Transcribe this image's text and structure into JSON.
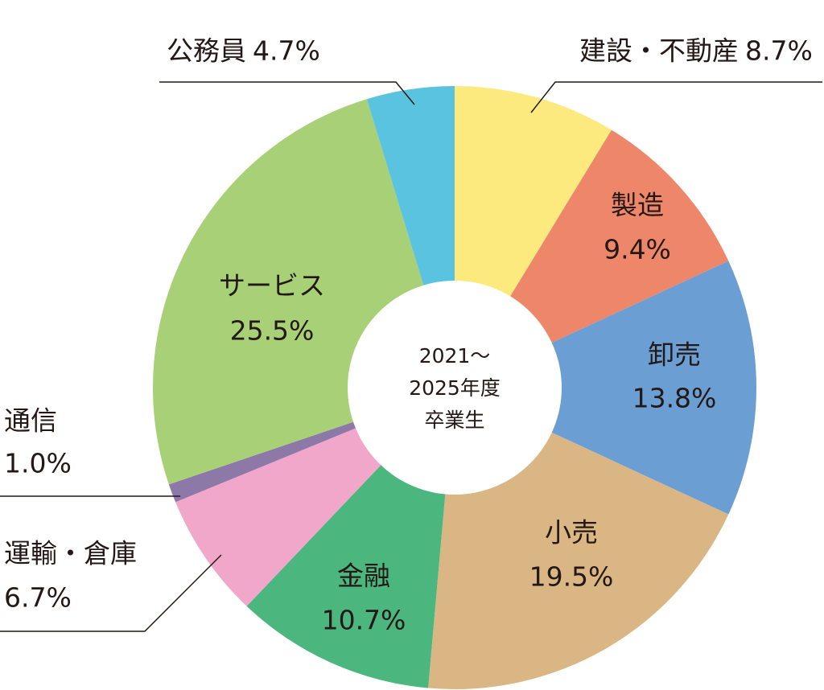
{
  "chart_data": {
    "type": "pie",
    "donut": true,
    "center_text": [
      "2021〜",
      "2025年度",
      "卒業生"
    ],
    "categories": [
      "建設・不動産",
      "製造",
      "卸売",
      "小売",
      "金融",
      "運輸・倉庫",
      "通信",
      "サービス",
      "公務員"
    ],
    "values": [
      8.7,
      9.4,
      13.8,
      19.5,
      10.7,
      6.7,
      1.0,
      25.5,
      4.7
    ],
    "value_labels": [
      "8.7%",
      "9.4%",
      "13.8%",
      "19.5%",
      "10.7%",
      "6.7%",
      "1.0%",
      "25.5%",
      "4.7%"
    ],
    "colors": [
      "#fdea7e",
      "#ee866a",
      "#6b9fd4",
      "#d9b683",
      "#4cb67f",
      "#f1a7c9",
      "#8c79a8",
      "#a8d077",
      "#5ac3e0"
    ]
  }
}
